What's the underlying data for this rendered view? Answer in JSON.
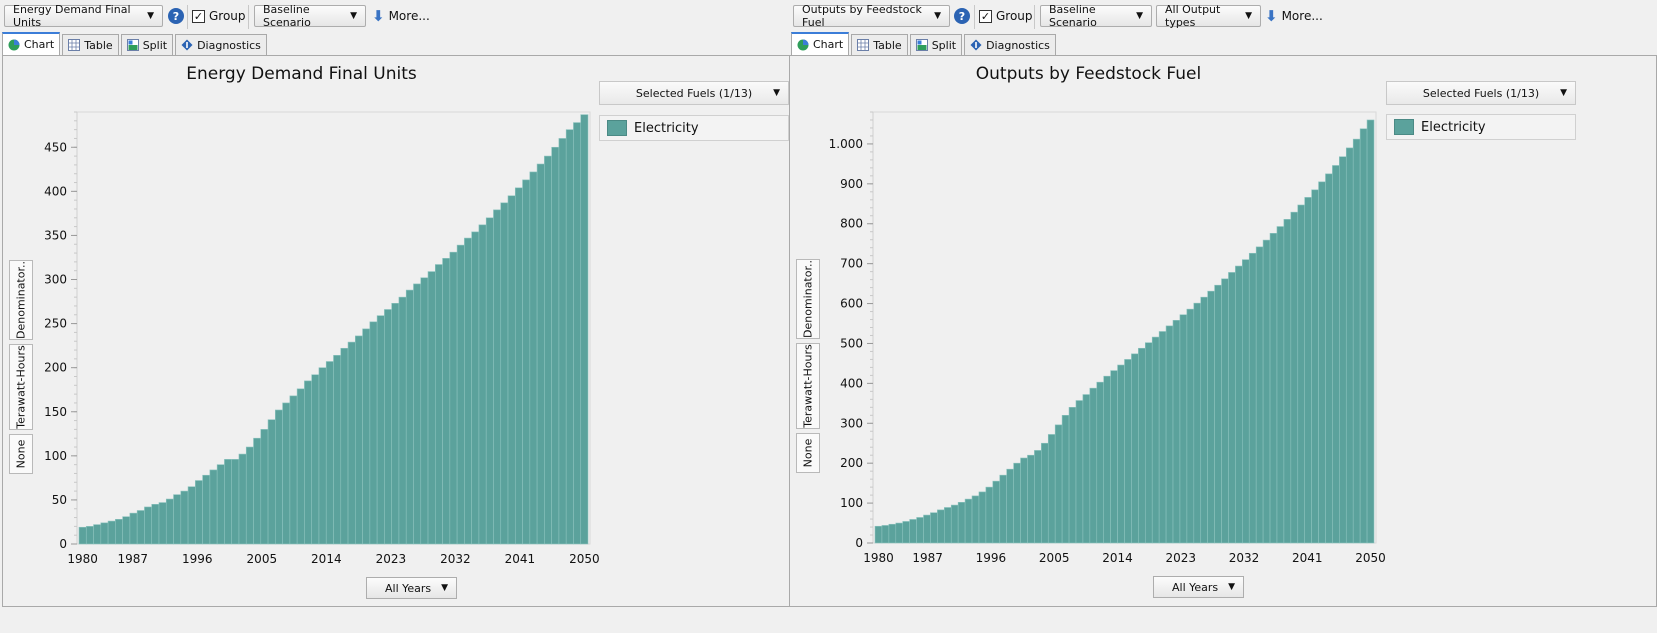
{
  "panels": [
    {
      "toolbar": {
        "variable": "Energy Demand Final Units",
        "group_label": "Group",
        "group_checked": "✓",
        "scenario": "Baseline Scenario",
        "more": "More..."
      },
      "tabs": [
        "Chart",
        "Table",
        "Split",
        "Diagnostics"
      ],
      "active_tab": "Chart",
      "fuel_selector": "Selected Fuels (1/13)",
      "side_buttons": [
        "Denominator..",
        "Terawatt-Hours",
        "None"
      ],
      "years_selector": "All Years",
      "chart_data": {
        "type": "bar",
        "title": "Energy Demand Final Units",
        "ylabel": "Terawatt-Hours",
        "ylim": [
          0,
          490
        ],
        "yticks": [
          0,
          50,
          100,
          150,
          200,
          250,
          300,
          350,
          400,
          450
        ],
        "ytick_labels": [
          "0",
          "50",
          "100",
          "150",
          "200",
          "250",
          "300",
          "350",
          "400",
          "450"
        ],
        "xticks": [
          "1980",
          "1987",
          "1996",
          "2005",
          "2014",
          "2023",
          "2032",
          "2041",
          "2050"
        ],
        "x_start": 1980,
        "x_end": 2050,
        "legend_position": "right",
        "series": [
          {
            "name": "Electricity",
            "color": "#5ba29c",
            "values": [
              19,
              20,
              22,
              24,
              26,
              28,
              31,
              35,
              38,
              42,
              45,
              47,
              51,
              56,
              60,
              65,
              72,
              78,
              84,
              90,
              96,
              96,
              102,
              110,
              120,
              130,
              141,
              152,
              160,
              168,
              176,
              185,
              192,
              200,
              207,
              214,
              222,
              229,
              236,
              244,
              252,
              259,
              266,
              273,
              280,
              288,
              295,
              302,
              309,
              317,
              324,
              331,
              339,
              347,
              354,
              362,
              370,
              379,
              387,
              395,
              404,
              413,
              422,
              431,
              440,
              450,
              460,
              470,
              478,
              487
            ]
          }
        ]
      }
    },
    {
      "toolbar": {
        "variable": "Outputs by Feedstock Fuel",
        "group_label": "Group",
        "group_checked": "✓",
        "scenario": "Baseline Scenario",
        "output_types": "All Output types",
        "more": "More..."
      },
      "tabs": [
        "Chart",
        "Table",
        "Split",
        "Diagnostics"
      ],
      "active_tab": "Chart",
      "fuel_selector": "Selected Fuels (1/13)",
      "side_buttons": [
        "Denominator..",
        "Terawatt-Hours",
        "None"
      ],
      "years_selector": "All Years",
      "chart_data": {
        "type": "bar",
        "title": "Outputs by Feedstock Fuel",
        "ylabel": "Terawatt-Hours",
        "ylim": [
          0,
          1080
        ],
        "yticks": [
          0,
          100,
          200,
          300,
          400,
          500,
          600,
          700,
          800,
          900,
          1000
        ],
        "ytick_labels": [
          "0",
          "100",
          "200",
          "300",
          "400",
          "500",
          "600",
          "700",
          "800",
          "900",
          "1.000"
        ],
        "xticks": [
          "1980",
          "1987",
          "1996",
          "2005",
          "2014",
          "2023",
          "2032",
          "2041",
          "2050"
        ],
        "x_start": 1980,
        "x_end": 2050,
        "legend_position": "right",
        "series": [
          {
            "name": "Electricity",
            "color": "#5ba29c",
            "values": [
              42,
              44,
              47,
              50,
              54,
              59,
              64,
              70,
              76,
              83,
              89,
              95,
              102,
              110,
              118,
              128,
              140,
              155,
              170,
              185,
              200,
              213,
              220,
              232,
              250,
              272,
              296,
              320,
              340,
              357,
              372,
              388,
              403,
              418,
              432,
              446,
              460,
              474,
              488,
              502,
              516,
              530,
              544,
              558,
              572,
              586,
              601,
              616,
              631,
              646,
              662,
              678,
              694,
              710,
              726,
              742,
              759,
              776,
              793,
              811,
              829,
              847,
              866,
              885,
              905,
              925,
              946,
              968,
              990,
              1012,
              1038,
              1060
            ]
          }
        ]
      }
    }
  ]
}
